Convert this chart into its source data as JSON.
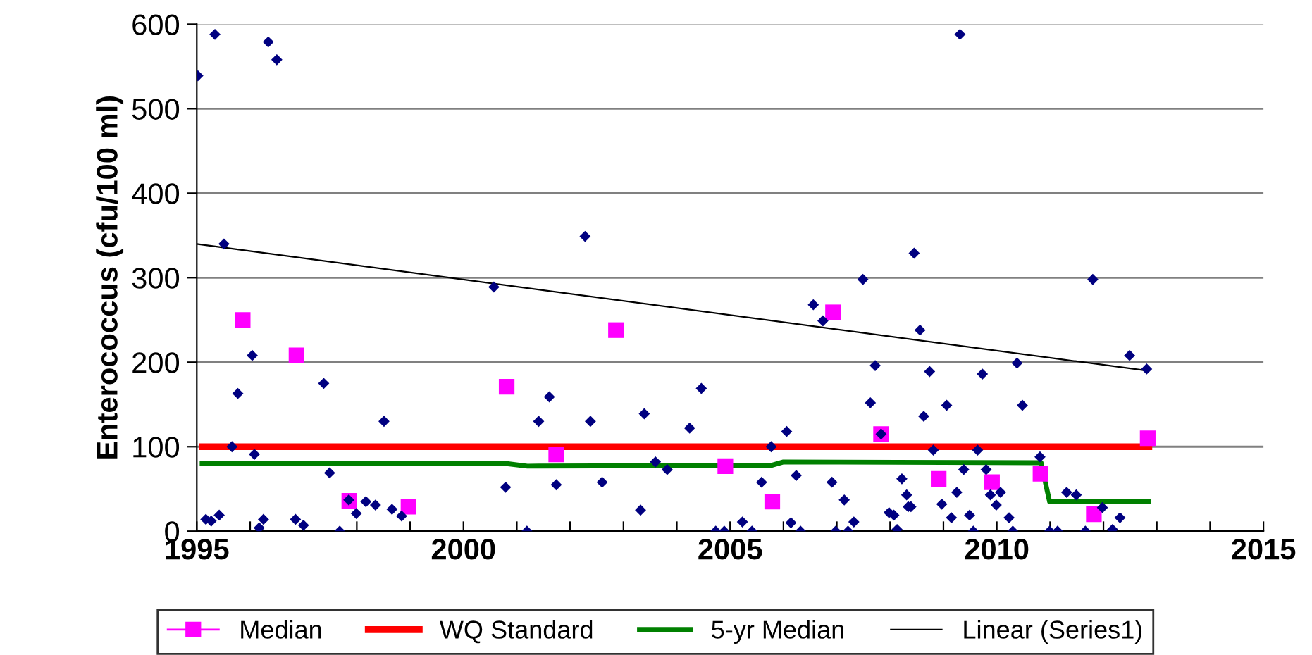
{
  "chart_data": {
    "type": "scatter",
    "ylabel": "Enterococcus (cfu/100 ml)",
    "xlim": [
      1995,
      2015
    ],
    "xticks": [
      1995,
      {
        "value": 1996,
        "label": null
      },
      {
        "value": 1997,
        "label": null
      },
      {
        "value": 1998,
        "label": null
      },
      {
        "value": 1999,
        "label": null
      },
      2000,
      {
        "value": 2001,
        "label": null
      },
      {
        "value": 2002,
        "label": null
      },
      {
        "value": 2003,
        "label": null
      },
      {
        "value": 2004,
        "label": null
      },
      2005,
      {
        "value": 2006,
        "label": null
      },
      {
        "value": 2007,
        "label": null
      },
      {
        "value": 2008,
        "label": null
      },
      {
        "value": 2009,
        "label": null
      },
      2010,
      {
        "value": 2011,
        "label": null
      },
      {
        "value": 2012,
        "label": null
      },
      {
        "value": 2013,
        "label": null
      },
      {
        "value": 2014,
        "label": null
      },
      2015
    ],
    "ylim": [
      0,
      600
    ],
    "yticks": [
      0,
      100,
      200,
      300,
      400,
      500,
      600
    ],
    "grid": "y",
    "legend": "bottom",
    "series": [
      {
        "marker": "diamond",
        "color": "#000080",
        "x": [
          1995.02,
          1995.34,
          1996.34,
          1996.5,
          1995.51,
          1996.04,
          1995.77,
          1995.66,
          1996.08,
          1997.38,
          1998.51,
          1997.49,
          1995.17,
          1995.27,
          1995.42,
          1996.17,
          1996.25,
          1996.85,
          1997.0,
          1997.68,
          1997.85,
          1997.99,
          1998.17,
          1998.35,
          1998.66,
          1998.84,
          2000.57,
          2000.79,
          2001.19,
          2001.41,
          2001.61,
          2001.74,
          2002.28,
          2002.38,
          2002.6,
          2003.32,
          2003.39,
          2003.6,
          2003.82,
          2004.24,
          2004.46,
          2004.73,
          2004.89,
          2005.23,
          2005.41,
          2005.59,
          2005.77,
          2006.06,
          2006.14,
          2006.24,
          2006.32,
          2006.56,
          2006.74,
          2006.91,
          2006.98,
          2007.14,
          2007.21,
          2007.32,
          2007.49,
          2007.63,
          2007.72,
          2007.83,
          2007.98,
          2008.07,
          2008.13,
          2008.22,
          2008.31,
          2008.34,
          2008.39,
          2008.45,
          2008.56,
          2008.63,
          2008.74,
          2008.81,
          2008.97,
          2009.06,
          2009.15,
          2009.25,
          2009.31,
          2009.38,
          2009.49,
          2009.56,
          2009.64,
          2009.73,
          2009.8,
          2009.88,
          2009.99,
          2010.07,
          2010.23,
          2010.3,
          2010.38,
          2010.48,
          2010.81,
          2010.99,
          2011.14,
          2011.31,
          2011.49,
          2011.66,
          2011.8,
          2011.98,
          2012.17,
          2012.31,
          2012.49,
          2012.81
        ],
        "values": [
          539,
          588,
          579,
          558,
          340,
          208,
          163,
          100,
          91,
          175,
          130,
          69,
          14,
          12,
          19,
          4,
          14,
          14,
          7,
          0,
          37,
          21,
          35,
          31,
          26,
          18,
          289,
          52,
          0,
          130,
          159,
          55,
          349,
          130,
          58,
          25,
          139,
          82,
          73,
          122,
          169,
          0,
          0,
          11,
          0,
          58,
          100,
          118,
          10,
          66,
          0,
          268,
          249,
          58,
          0,
          37,
          0,
          11,
          298,
          152,
          196,
          115,
          22,
          19,
          2,
          62,
          43,
          29,
          29,
          329,
          238,
          136,
          189,
          96,
          32,
          149,
          16,
          46,
          588,
          73,
          19,
          0,
          96,
          186,
          73,
          43,
          31,
          46,
          16,
          0,
          199,
          149,
          88,
          0,
          0,
          46,
          43,
          0,
          298,
          28,
          2,
          16,
          208,
          192
        ]
      },
      {
        "name": "Median",
        "marker": "square",
        "color": "#ff00ff",
        "x": [
          1995.86,
          1996.87,
          1997.86,
          1998.97,
          2000.81,
          2001.74,
          2002.86,
          2004.91,
          2005.79,
          2006.93,
          2007.83,
          2008.91,
          2009.91,
          2010.82,
          2011.82,
          2012.83
        ],
        "values": [
          250,
          208,
          36,
          29,
          171,
          91,
          238,
          77,
          35,
          259,
          115,
          62,
          58,
          68,
          20,
          110
        ]
      },
      {
        "type": "line",
        "name": "WQ Standard",
        "color": "#ff0000",
        "x": [
          1995.1,
          2012.85
        ],
        "values": [
          100,
          100
        ]
      },
      {
        "type": "line",
        "name": "5-yr Median",
        "color": "#008000",
        "x": [
          1995.1,
          2000.81,
          2001.2,
          2005.78,
          2006.0,
          2010.83,
          2010.99,
          2012.85
        ],
        "values": [
          80,
          80,
          77,
          78,
          82,
          81,
          35,
          35
        ]
      },
      {
        "type": "line",
        "name": "Linear (Series1)",
        "color": "#000000",
        "x": [
          1995,
          2012.81
        ],
        "values": [
          340,
          190
        ]
      }
    ]
  }
}
